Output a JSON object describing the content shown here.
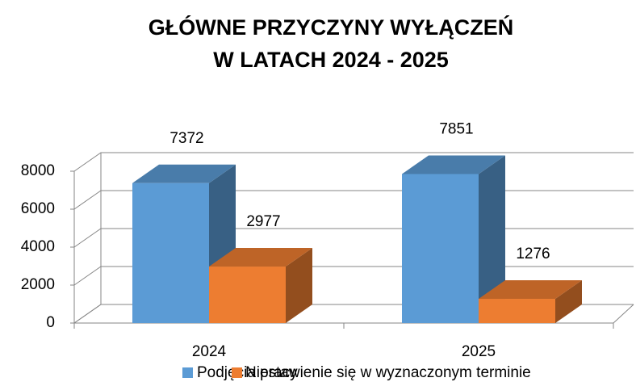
{
  "chart_data": {
    "type": "bar3d",
    "title": [
      "GŁÓWNE PRZYCZYNY WYŁĄCZEŃ",
      "W LATACH 2024 - 2025"
    ],
    "categories": [
      "2024",
      "2025"
    ],
    "series": [
      {
        "name": "Podjęcia pracy",
        "color": "#5b9bd5",
        "values": [
          7372,
          7851
        ]
      },
      {
        "name": "Niestawienie się w wyznaczonym terminie",
        "color": "#ed7d31",
        "values": [
          2977,
          1276
        ]
      }
    ],
    "ylim": [
      0,
      8000
    ],
    "yticks": [
      0,
      2000,
      4000,
      6000,
      8000
    ],
    "grid": true,
    "legend": "bottom"
  }
}
